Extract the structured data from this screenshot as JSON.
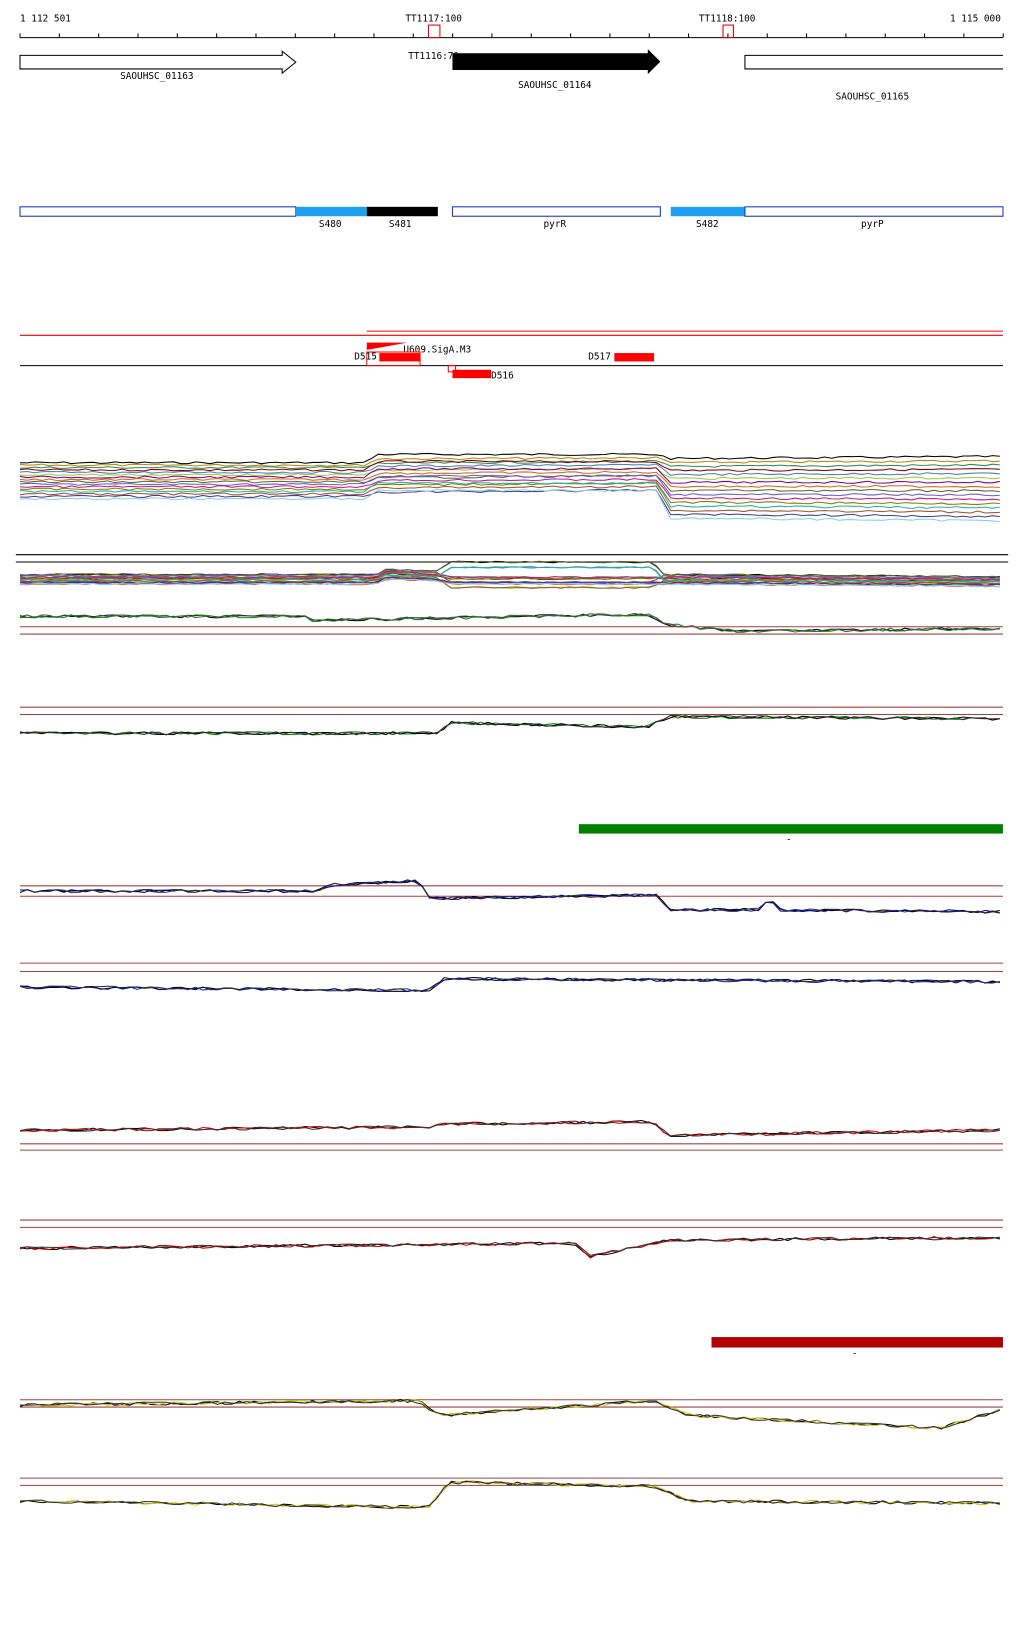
{
  "ruler": {
    "start": "1 112 501",
    "end": "1 115 000",
    "sites": [
      "TT1117:100",
      "TT1118:100",
      "TT1116:70"
    ]
  },
  "genes": [
    "SAOUHSC_01163",
    "SAOUHSC_01164",
    "SAOUHSC_01165"
  ],
  "segments": [
    "S480",
    "S481",
    "pyrR",
    "S482",
    "pyrP"
  ],
  "features": {
    "promoter": "U609.SigA.M3",
    "items": [
      "D515",
      "D516",
      "D517"
    ]
  },
  "markers": [
    "-",
    "-"
  ]
}
